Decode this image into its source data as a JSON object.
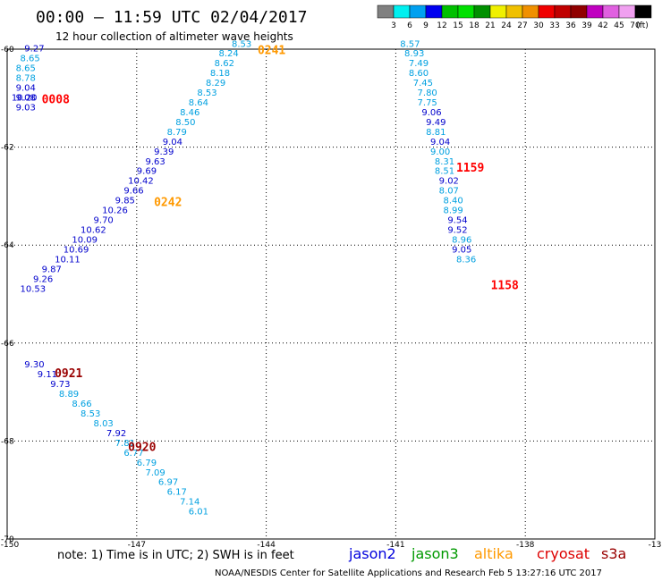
{
  "header": {
    "title": "00:00 – 11:59 UTC 02/04/2017",
    "subtitle": "12 hour collection of altimeter wave heights"
  },
  "scale": {
    "colors": [
      "#808080",
      "#00f0f0",
      "#00a0f0",
      "#0000f0",
      "#00c000",
      "#00e000",
      "#009000",
      "#f0f000",
      "#f0c000",
      "#f09000",
      "#f00000",
      "#c00000",
      "#900000",
      "#c000c0",
      "#e060e0",
      "#f0a0f0",
      "#000000"
    ],
    "labels": [
      "3",
      "6",
      "9",
      "12",
      "15",
      "18",
      "21",
      "24",
      "27",
      "30",
      "33",
      "36",
      "39",
      "42",
      "45",
      "70",
      "(ft)"
    ]
  },
  "footer": {
    "note": "note: 1) Time is in UTC; 2) SWH is in feet",
    "satellites": [
      {
        "name": "jason2",
        "color": "#0000dd"
      },
      {
        "name": "jason3",
        "color": "#009900"
      },
      {
        "name": "altika",
        "color": "#ff9900"
      },
      {
        "name": "cryosat",
        "color": "#dd0000"
      },
      {
        "name": "s3a",
        "color": "#990000"
      }
    ],
    "credit": "NOAA/NESDIS Center for Satellite Applications and Research    Feb  5 13:27:16 UTC 2017"
  },
  "chart_data": {
    "type": "scatter",
    "xlim": [
      -150,
      -135
    ],
    "ylim": [
      -70,
      -60
    ],
    "x_ticks": [
      "-150",
      "-147",
      "-144",
      "-141",
      "-138",
      "-13"
    ],
    "y_ticks": [
      "-60",
      "-62",
      "-64",
      "-66",
      "-68",
      "-70"
    ],
    "grid": true,
    "time_labels": [
      {
        "text": "0008",
        "lon": -149.2,
        "lat": -61.1,
        "color": "#ff0000"
      },
      {
        "text": "0241",
        "lon": -144.2,
        "lat": -60.1,
        "color": "#ff9900"
      },
      {
        "text": "0242",
        "lon": -146.6,
        "lat": -63.2,
        "color": "#ff9900"
      },
      {
        "text": "1159",
        "lon": -139.6,
        "lat": -62.5,
        "color": "#ff0000"
      },
      {
        "text": "1158",
        "lon": -138.8,
        "lat": -64.9,
        "color": "#ff0000"
      },
      {
        "text": "0921",
        "lon": -148.9,
        "lat": -66.7,
        "color": "#990000"
      },
      {
        "text": "0920",
        "lon": -147.2,
        "lat": -68.2,
        "color": "#990000"
      }
    ],
    "series": [
      {
        "values": [
          {
            "lon": -149.6,
            "lat": -60.05,
            "v": "9.27",
            "c": "#0000cc"
          },
          {
            "lon": -149.7,
            "lat": -60.25,
            "v": "8.65",
            "c": "#00a0e0"
          },
          {
            "lon": -149.8,
            "lat": -60.45,
            "v": "8.65",
            "c": "#00a0e0"
          },
          {
            "lon": -149.8,
            "lat": -60.65,
            "v": "8.78",
            "c": "#00a0e0"
          },
          {
            "lon": -149.8,
            "lat": -60.85,
            "v": "9.04",
            "c": "#0000cc"
          },
          {
            "lon": -149.8,
            "lat": -61.05,
            "v": "9.08",
            "c": "#0000cc"
          },
          {
            "lon": -149.9,
            "lat": -61.05,
            "v": "10.20",
            "c": "#0000cc"
          },
          {
            "lon": -149.8,
            "lat": -61.25,
            "v": "9.03",
            "c": "#0000cc"
          }
        ]
      },
      {
        "values": [
          {
            "lon": -144.8,
            "lat": -59.95,
            "v": "8.53",
            "c": "#00a0e0"
          },
          {
            "lon": -145.1,
            "lat": -60.15,
            "v": "8.24",
            "c": "#00a0e0"
          },
          {
            "lon": -145.2,
            "lat": -60.35,
            "v": "8.62",
            "c": "#00a0e0"
          },
          {
            "lon": -145.3,
            "lat": -60.55,
            "v": "8.18",
            "c": "#00a0e0"
          },
          {
            "lon": -145.4,
            "lat": -60.75,
            "v": "8.29",
            "c": "#00a0e0"
          },
          {
            "lon": -145.6,
            "lat": -60.95,
            "v": "8.53",
            "c": "#00a0e0"
          },
          {
            "lon": -145.8,
            "lat": -61.15,
            "v": "8.64",
            "c": "#00a0e0"
          },
          {
            "lon": -146.0,
            "lat": -61.35,
            "v": "8.46",
            "c": "#00a0e0"
          },
          {
            "lon": -146.1,
            "lat": -61.55,
            "v": "8.50",
            "c": "#00a0e0"
          },
          {
            "lon": -146.3,
            "lat": -61.75,
            "v": "8.79",
            "c": "#00a0e0"
          },
          {
            "lon": -146.4,
            "lat": -61.95,
            "v": "9.04",
            "c": "#0000cc"
          },
          {
            "lon": -146.6,
            "lat": -62.15,
            "v": "9.39",
            "c": "#0000cc"
          },
          {
            "lon": -146.8,
            "lat": -62.35,
            "v": "9.63",
            "c": "#0000cc"
          },
          {
            "lon": -147.0,
            "lat": -62.55,
            "v": "9.69",
            "c": "#0000cc"
          },
          {
            "lon": -147.2,
            "lat": -62.75,
            "v": "10.42",
            "c": "#0000cc"
          },
          {
            "lon": -147.3,
            "lat": -62.95,
            "v": "9.66",
            "c": "#0000cc"
          },
          {
            "lon": -147.5,
            "lat": -63.15,
            "v": "9.85",
            "c": "#0000cc"
          },
          {
            "lon": -147.8,
            "lat": -63.35,
            "v": "10.26",
            "c": "#0000cc"
          },
          {
            "lon": -148.0,
            "lat": -63.55,
            "v": "9.70",
            "c": "#0000cc"
          },
          {
            "lon": -148.3,
            "lat": -63.75,
            "v": "10.62",
            "c": "#0000cc"
          },
          {
            "lon": -148.5,
            "lat": -63.95,
            "v": "10.09",
            "c": "#0000cc"
          },
          {
            "lon": -148.7,
            "lat": -64.15,
            "v": "10.69",
            "c": "#0000cc"
          },
          {
            "lon": -148.9,
            "lat": -64.35,
            "v": "10.11",
            "c": "#0000cc"
          },
          {
            "lon": -149.2,
            "lat": -64.55,
            "v": "9.87",
            "c": "#0000cc"
          },
          {
            "lon": -149.4,
            "lat": -64.75,
            "v": "9.26",
            "c": "#0000cc"
          },
          {
            "lon": -149.7,
            "lat": -64.95,
            "v": "10.53",
            "c": "#0000cc"
          }
        ]
      },
      {
        "values": [
          {
            "lon": -140.9,
            "lat": -59.95,
            "v": "8.57",
            "c": "#00a0e0"
          },
          {
            "lon": -140.8,
            "lat": -60.15,
            "v": "8.93",
            "c": "#00a0e0"
          },
          {
            "lon": -140.7,
            "lat": -60.35,
            "v": "7.49",
            "c": "#00a0e0"
          },
          {
            "lon": -140.7,
            "lat": -60.55,
            "v": "8.60",
            "c": "#00a0e0"
          },
          {
            "lon": -140.6,
            "lat": -60.75,
            "v": "7.45",
            "c": "#00a0e0"
          },
          {
            "lon": -140.5,
            "lat": -60.95,
            "v": "7.80",
            "c": "#00a0e0"
          },
          {
            "lon": -140.5,
            "lat": -61.15,
            "v": "7.75",
            "c": "#00a0e0"
          },
          {
            "lon": -140.4,
            "lat": -61.35,
            "v": "9.06",
            "c": "#0000cc"
          },
          {
            "lon": -140.3,
            "lat": -61.55,
            "v": "9.49",
            "c": "#0000cc"
          },
          {
            "lon": -140.3,
            "lat": -61.75,
            "v": "8.81",
            "c": "#00a0e0"
          },
          {
            "lon": -140.2,
            "lat": -61.95,
            "v": "9.04",
            "c": "#0000cc"
          },
          {
            "lon": -140.2,
            "lat": -62.15,
            "v": "9.00",
            "c": "#00a0e0"
          },
          {
            "lon": -140.1,
            "lat": -62.35,
            "v": "8.31",
            "c": "#00a0e0"
          },
          {
            "lon": -140.1,
            "lat": -62.55,
            "v": "8.51",
            "c": "#00a0e0"
          },
          {
            "lon": -140.0,
            "lat": -62.75,
            "v": "9.02",
            "c": "#0000cc"
          },
          {
            "lon": -140.0,
            "lat": -62.95,
            "v": "8.07",
            "c": "#00a0e0"
          },
          {
            "lon": -139.9,
            "lat": -63.15,
            "v": "8.40",
            "c": "#00a0e0"
          },
          {
            "lon": -139.9,
            "lat": -63.35,
            "v": "8.99",
            "c": "#00a0e0"
          },
          {
            "lon": -139.8,
            "lat": -63.55,
            "v": "9.54",
            "c": "#0000cc"
          },
          {
            "lon": -139.8,
            "lat": -63.75,
            "v": "9.52",
            "c": "#0000cc"
          },
          {
            "lon": -139.7,
            "lat": -63.95,
            "v": "8.96",
            "c": "#00a0e0"
          },
          {
            "lon": -139.7,
            "lat": -64.15,
            "v": "9.05",
            "c": "#0000cc"
          },
          {
            "lon": -139.6,
            "lat": -64.35,
            "v": "8.36",
            "c": "#00a0e0"
          }
        ]
      },
      {
        "values": [
          {
            "lon": -149.6,
            "lat": -66.5,
            "v": "9.30",
            "c": "#0000cc"
          },
          {
            "lon": -149.3,
            "lat": -66.7,
            "v": "9.11",
            "c": "#0000cc"
          },
          {
            "lon": -149.0,
            "lat": -66.9,
            "v": "9.73",
            "c": "#0000cc"
          },
          {
            "lon": -148.8,
            "lat": -67.1,
            "v": "8.89",
            "c": "#00a0e0"
          },
          {
            "lon": -148.5,
            "lat": -67.3,
            "v": "8.66",
            "c": "#00a0e0"
          },
          {
            "lon": -148.3,
            "lat": -67.5,
            "v": "8.53",
            "c": "#00a0e0"
          },
          {
            "lon": -148.0,
            "lat": -67.7,
            "v": "8.03",
            "c": "#00a0e0"
          },
          {
            "lon": -147.7,
            "lat": -67.9,
            "v": "7.92",
            "c": "#0000cc"
          },
          {
            "lon": -147.5,
            "lat": -68.1,
            "v": "7.81",
            "c": "#00a0e0"
          },
          {
            "lon": -147.3,
            "lat": -68.3,
            "v": "6.77",
            "c": "#00a0e0"
          },
          {
            "lon": -147.0,
            "lat": -68.5,
            "v": "6.79",
            "c": "#00a0e0"
          },
          {
            "lon": -146.8,
            "lat": -68.7,
            "v": "7.09",
            "c": "#00a0e0"
          },
          {
            "lon": -146.5,
            "lat": -68.9,
            "v": "6.97",
            "c": "#00a0e0"
          },
          {
            "lon": -146.3,
            "lat": -69.1,
            "v": "6.17",
            "c": "#00a0e0"
          },
          {
            "lon": -146.0,
            "lat": -69.3,
            "v": "7.14",
            "c": "#00a0e0"
          },
          {
            "lon": -145.8,
            "lat": -69.5,
            "v": "6.01",
            "c": "#00a0e0"
          }
        ]
      }
    ]
  }
}
